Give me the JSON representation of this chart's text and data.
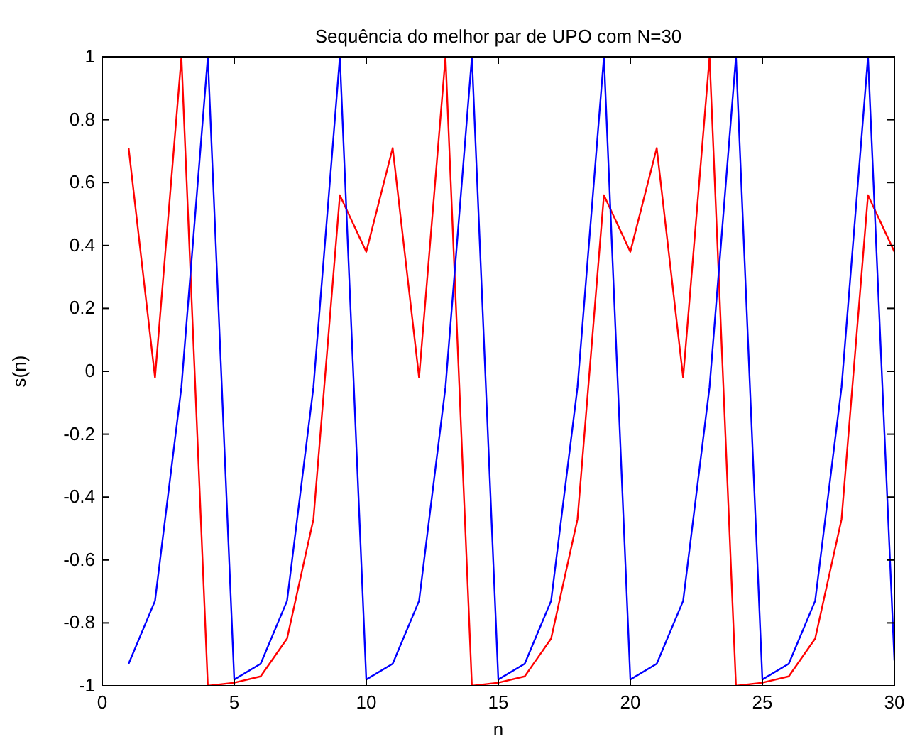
{
  "chart_data": {
    "type": "line",
    "title": "Sequência do melhor par de UPO com N=30",
    "xlabel": "n",
    "ylabel": "s(n)",
    "x": [
      1,
      2,
      3,
      4,
      5,
      6,
      7,
      8,
      9,
      10,
      11,
      12,
      13,
      14,
      15,
      16,
      17,
      18,
      19,
      20,
      21,
      22,
      23,
      24,
      25,
      26,
      27,
      28,
      29,
      30
    ],
    "series": [
      {
        "color": "#ff0000",
        "values": [
          0.71,
          -0.02,
          1,
          -1,
          -0.99,
          -0.97,
          -0.85,
          -0.47,
          0.56,
          0.38,
          0.71,
          -0.02,
          1,
          -1,
          -0.99,
          -0.97,
          -0.85,
          -0.47,
          0.56,
          0.38,
          0.71,
          -0.02,
          1,
          -1,
          -0.99,
          -0.97,
          -0.85,
          -0.47,
          0.56,
          0.38
        ]
      },
      {
        "color": "#0000ff",
        "values": [
          -0.93,
          -0.73,
          -0.05,
          1,
          -0.98,
          -0.93,
          -0.73,
          -0.05,
          1,
          -0.98,
          -0.93,
          -0.73,
          -0.05,
          1,
          -0.98,
          -0.93,
          -0.73,
          -0.05,
          1,
          -0.98,
          -0.93,
          -0.73,
          -0.05,
          1,
          -0.98,
          -0.93,
          -0.73,
          -0.05,
          1,
          -0.92
        ]
      }
    ],
    "xlim": [
      0,
      30
    ],
    "xticks": [
      0,
      5,
      10,
      15,
      20,
      25,
      30
    ],
    "ylim": [
      -1,
      1
    ],
    "yticks": [
      -1,
      -0.8,
      -0.6,
      -0.4,
      -0.2,
      0,
      0.2,
      0.4,
      0.6,
      0.8,
      1
    ],
    "grid": false,
    "marker": "none",
    "line_style": "solid"
  }
}
